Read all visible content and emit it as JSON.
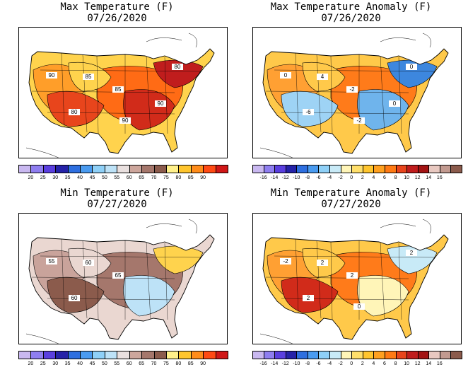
{
  "panels": [
    {
      "title_line1": "Max Temperature (F)",
      "title_line2": "07/26/2020",
      "scale": "abs",
      "contour_labels": [
        "90",
        "85",
        "85",
        "80",
        "80",
        "90",
        "90"
      ],
      "regions": [
        "#ffd34d",
        "#ff9e29",
        "#ff6b15",
        "#e8451c",
        "#d12b1a",
        "#c01d1d"
      ]
    },
    {
      "title_line1": "Max Temperature Anomaly (F)",
      "title_line2": "07/26/2020",
      "scale": "anom",
      "contour_labels": [
        "0",
        "4",
        "-2",
        "-6",
        "0",
        "-2",
        "0"
      ],
      "regions": [
        "#ffc94a",
        "#ffa033",
        "#ff7b1a",
        "#9ed3f5",
        "#6fb4ec",
        "#3d87de"
      ]
    },
    {
      "title_line1": "Min Temperature (F)",
      "title_line2": "07/27/2020",
      "scale": "abs",
      "contour_labels": [
        "55",
        "60",
        "65",
        "60"
      ],
      "regions": [
        "#ead7d1",
        "#c9a39b",
        "#a5776c",
        "#8b5b4c",
        "#bde2f7",
        "#ffd34d"
      ]
    },
    {
      "title_line1": "Min Temperature Anomaly (F)",
      "title_line2": "07/27/2020",
      "scale": "anom",
      "contour_labels": [
        "-2",
        "2",
        "2",
        "2",
        "2",
        "0"
      ],
      "regions": [
        "#ffc94a",
        "#ffa033",
        "#ff7b1a",
        "#d12b1a",
        "#fff5b8",
        "#c8eaf7"
      ]
    }
  ],
  "scales": {
    "abs": {
      "colors": [
        "#c9b8f0",
        "#8f7ef0",
        "#5a3fdf",
        "#2522a8",
        "#2e6fe0",
        "#4a9bf0",
        "#8fd0f7",
        "#bde2f7",
        "#e9e0df",
        "#cda69c",
        "#a5776c",
        "#8b5b4c",
        "#fff08a",
        "#ffc52e",
        "#ff8c1a",
        "#ff4a14",
        "#d01717"
      ],
      "tick_labels": [
        "20",
        "25",
        "30",
        "35",
        "40",
        "45",
        "50",
        "55",
        "60",
        "65",
        "70",
        "75",
        "80",
        "85",
        "90"
      ]
    },
    "anom": {
      "colors": [
        "#c9b8f0",
        "#8f7ef0",
        "#5a3fdf",
        "#2522a8",
        "#2e6fe0",
        "#4a9bf0",
        "#8fd0f7",
        "#c8eaf7",
        "#fff5b8",
        "#ffdf6b",
        "#ffc52e",
        "#ffa01f",
        "#ff7a14",
        "#e8451c",
        "#c01d1d",
        "#a31313",
        "#e8c8c0",
        "#c29a90",
        "#8b5b4c"
      ],
      "tick_labels": [
        "-16",
        "-14",
        "-12",
        "-10",
        "-8",
        "-6",
        "-4",
        "-2",
        "0",
        "2",
        "4",
        "6",
        "8",
        "10",
        "12",
        "14",
        "16"
      ]
    }
  }
}
